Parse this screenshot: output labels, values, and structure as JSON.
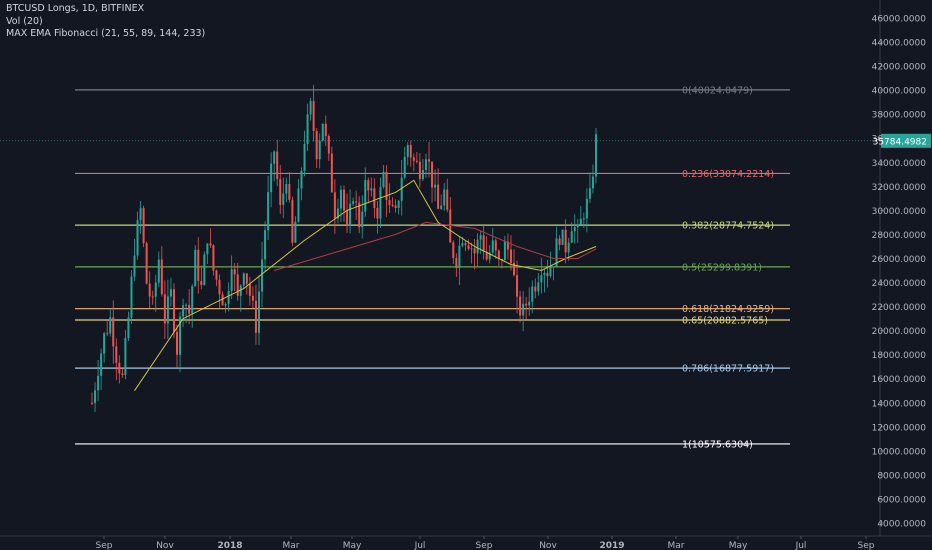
{
  "legend": {
    "symbol": "BTCUSD Longs, 1D, BITFINEX",
    "vol": "Vol (20)",
    "ema": "MAX EMA Fibonacci (21, 55, 89, 144, 233)"
  },
  "colors": {
    "background": "#131722",
    "axis_text": "#b2b5be",
    "candle_up": "#26a69a",
    "candle_down": "#ef5350",
    "ema_fast": "#d6c640",
    "ema_slow": "#b23a48",
    "last_price_bg": "#26a69a"
  },
  "chart_data": {
    "type": "candlestick",
    "yaxis": {
      "ylim": [
        3000,
        47000
      ],
      "ticks": [
        "4000.0000",
        "6000.0000",
        "8000.0000",
        "10000.0000",
        "12000.0000",
        "14000.0000",
        "16000.0000",
        "18000.0000",
        "20000.0000",
        "22000.0000",
        "24000.0000",
        "26000.0000",
        "28000.0000",
        "30000.0000",
        "32000.0000",
        "34000.0000",
        "36000.0000",
        "38000.0000",
        "40000.0000",
        "42000.0000",
        "44000.0000",
        "46000.0000"
      ]
    },
    "xaxis": {
      "ticks": [
        "Sep",
        "Nov",
        "2018",
        "Mar",
        "May",
        "Jul",
        "Sep",
        "Nov",
        "2019",
        "Mar",
        "May",
        "Jul",
        "Sep"
      ]
    },
    "last_price": 35784.4982,
    "last_price_label": "35784.4982",
    "fib_levels": [
      {
        "label": "0(40024.0479)",
        "value": 40024.0479,
        "color": "#787b86"
      },
      {
        "label": "0.236(33074.2214)",
        "value": 33074.2214,
        "color": "#e06b6b"
      },
      {
        "label": "0.382(28774.7524)",
        "value": 28774.7524,
        "color": "#c9d47e"
      },
      {
        "label": "0.5(25299.8391)",
        "value": 25299.8391,
        "color": "#6aa84f"
      },
      {
        "label": "0.618(21824.9259)",
        "value": 21824.9259,
        "color": "#f0b27a"
      },
      {
        "label": "0.65(20882.5765)",
        "value": 20882.5765,
        "color": "#e6d27a"
      },
      {
        "label": "0.786(16877.5917)",
        "value": 16877.5917,
        "color": "#a8c8e8"
      },
      {
        "label": "1(10575.6304)",
        "value": 10575.6304,
        "color": "#ffffff"
      }
    ],
    "price_path": [
      [
        0,
        14000
      ],
      [
        2,
        17000
      ],
      [
        4,
        19500
      ],
      [
        6,
        21000
      ],
      [
        8,
        18000
      ],
      [
        10,
        16000
      ],
      [
        12,
        21000
      ],
      [
        14,
        27000
      ],
      [
        16,
        30000
      ],
      [
        18,
        24000
      ],
      [
        20,
        22000
      ],
      [
        22,
        26000
      ],
      [
        24,
        21000
      ],
      [
        26,
        23000
      ],
      [
        28,
        18500
      ],
      [
        30,
        23000
      ],
      [
        32,
        21500
      ],
      [
        34,
        26000
      ],
      [
        36,
        23500
      ],
      [
        38,
        28000
      ],
      [
        40,
        25000
      ],
      [
        42,
        23500
      ],
      [
        44,
        22000
      ],
      [
        46,
        26000
      ],
      [
        48,
        22500
      ],
      [
        50,
        25500
      ],
      [
        52,
        23000
      ],
      [
        54,
        20500
      ],
      [
        56,
        26000
      ],
      [
        58,
        31000
      ],
      [
        60,
        35000
      ],
      [
        62,
        30000
      ],
      [
        64,
        33000
      ],
      [
        66,
        27000
      ],
      [
        68,
        31000
      ],
      [
        70,
        36000
      ],
      [
        72,
        38500
      ],
      [
        74,
        35000
      ],
      [
        76,
        37500
      ],
      [
        78,
        34000
      ],
      [
        80,
        30000
      ],
      [
        82,
        32000
      ],
      [
        84,
        28000
      ],
      [
        86,
        31500
      ],
      [
        88,
        29000
      ],
      [
        90,
        32000
      ],
      [
        92,
        31000
      ],
      [
        94,
        30000
      ],
      [
        96,
        33000
      ],
      [
        98,
        30000
      ],
      [
        100,
        29500
      ],
      [
        102,
        33000
      ],
      [
        104,
        35500
      ],
      [
        106,
        34000
      ],
      [
        108,
        33500
      ],
      [
        110,
        35000
      ],
      [
        112,
        32500
      ],
      [
        114,
        30000
      ],
      [
        116,
        31500
      ],
      [
        118,
        27000
      ],
      [
        120,
        26000
      ],
      [
        122,
        28000
      ],
      [
        124,
        27500
      ],
      [
        126,
        26500
      ],
      [
        128,
        28000
      ],
      [
        130,
        26000
      ],
      [
        132,
        27000
      ],
      [
        134,
        25500
      ],
      [
        136,
        27000
      ],
      [
        138,
        26500
      ],
      [
        140,
        22000
      ],
      [
        142,
        21500
      ],
      [
        144,
        23000
      ],
      [
        146,
        24000
      ],
      [
        148,
        25500
      ],
      [
        150,
        25000
      ],
      [
        152,
        26000
      ],
      [
        154,
        28000
      ],
      [
        156,
        27000
      ],
      [
        158,
        29000
      ],
      [
        160,
        28000
      ],
      [
        162,
        30000
      ],
      [
        164,
        31000
      ],
      [
        166,
        35800
      ]
    ],
    "ema_fast": [
      [
        14,
        15000
      ],
      [
        30,
        21000
      ],
      [
        50,
        23500
      ],
      [
        70,
        27500
      ],
      [
        84,
        30000
      ],
      [
        100,
        31500
      ],
      [
        106,
        32500
      ],
      [
        114,
        29000
      ],
      [
        126,
        27000
      ],
      [
        138,
        25500
      ],
      [
        148,
        25000
      ],
      [
        156,
        26000
      ],
      [
        166,
        27000
      ]
    ],
    "ema_slow": [
      [
        60,
        25000
      ],
      [
        80,
        26500
      ],
      [
        100,
        28000
      ],
      [
        110,
        29000
      ],
      [
        126,
        28500
      ],
      [
        140,
        27000
      ],
      [
        152,
        26000
      ],
      [
        160,
        26000
      ],
      [
        166,
        26800
      ]
    ]
  }
}
